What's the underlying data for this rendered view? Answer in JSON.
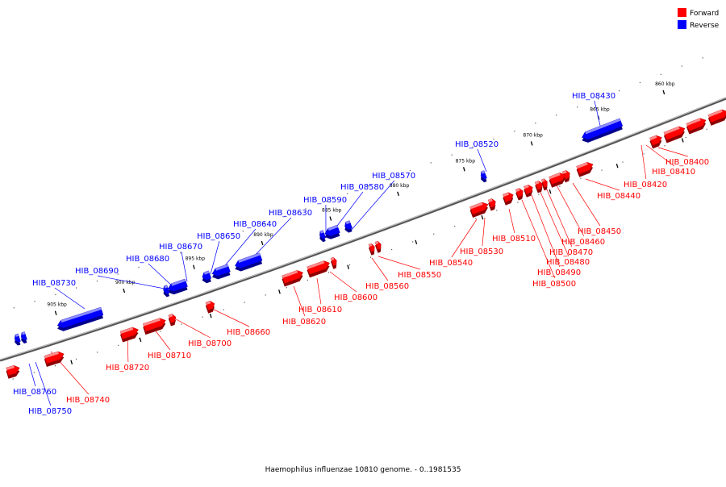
{
  "colors": {
    "forward": "#ff0000",
    "reverse": "#0000ff",
    "axis": "#777777"
  },
  "legend": [
    {
      "key": "forward",
      "label": "Forward"
    },
    {
      "key": "reverse",
      "label": "Reverse"
    }
  ],
  "caption": "Haemophilus influenzae 10810 genome. - 0..1981535",
  "ticks": [
    "860 kbp",
    "865 kbp",
    "870 kbp",
    "875 kbp",
    "880 kbp",
    "885 kbp",
    "890 kbp",
    "895 kbp",
    "900 kbp",
    "905 kbp"
  ],
  "genes": [
    {
      "name": "HIB_08400",
      "strand": "forward"
    },
    {
      "name": "HIB_08410",
      "strand": "forward"
    },
    {
      "name": "HIB_08420",
      "strand": "forward"
    },
    {
      "name": "HIB_08430",
      "strand": "reverse"
    },
    {
      "name": "HIB_08440",
      "strand": "forward"
    },
    {
      "name": "HIB_08450",
      "strand": "forward"
    },
    {
      "name": "HIB_08460",
      "strand": "forward"
    },
    {
      "name": "HIB_08470",
      "strand": "forward"
    },
    {
      "name": "HIB_08480",
      "strand": "forward"
    },
    {
      "name": "HIB_08490",
      "strand": "forward"
    },
    {
      "name": "HIB_08500",
      "strand": "forward"
    },
    {
      "name": "HIB_08510",
      "strand": "forward"
    },
    {
      "name": "HIB_08520",
      "strand": "reverse"
    },
    {
      "name": "HIB_08530",
      "strand": "forward"
    },
    {
      "name": "HIB_08540",
      "strand": "forward"
    },
    {
      "name": "HIB_08550",
      "strand": "forward"
    },
    {
      "name": "HIB_08560",
      "strand": "forward"
    },
    {
      "name": "HIB_08570",
      "strand": "reverse"
    },
    {
      "name": "HIB_08580",
      "strand": "reverse"
    },
    {
      "name": "HIB_08590",
      "strand": "reverse"
    },
    {
      "name": "HIB_08600",
      "strand": "forward"
    },
    {
      "name": "HIB_08610",
      "strand": "forward"
    },
    {
      "name": "HIB_08620",
      "strand": "forward"
    },
    {
      "name": "HIB_08630",
      "strand": "reverse"
    },
    {
      "name": "HIB_08640",
      "strand": "reverse"
    },
    {
      "name": "HIB_08650",
      "strand": "reverse"
    },
    {
      "name": "HIB_08660",
      "strand": "forward"
    },
    {
      "name": "HIB_08670",
      "strand": "reverse"
    },
    {
      "name": "HIB_08680",
      "strand": "reverse"
    },
    {
      "name": "HIB_08690",
      "strand": "reverse"
    },
    {
      "name": "HIB_08700",
      "strand": "forward"
    },
    {
      "name": "HIB_08710",
      "strand": "forward"
    },
    {
      "name": "HIB_08720",
      "strand": "forward"
    },
    {
      "name": "HIB_08730",
      "strand": "reverse"
    },
    {
      "name": "HIB_08740",
      "strand": "forward"
    },
    {
      "name": "HIB_08750",
      "strand": "reverse"
    },
    {
      "name": "HIB_08760",
      "strand": "reverse"
    }
  ]
}
